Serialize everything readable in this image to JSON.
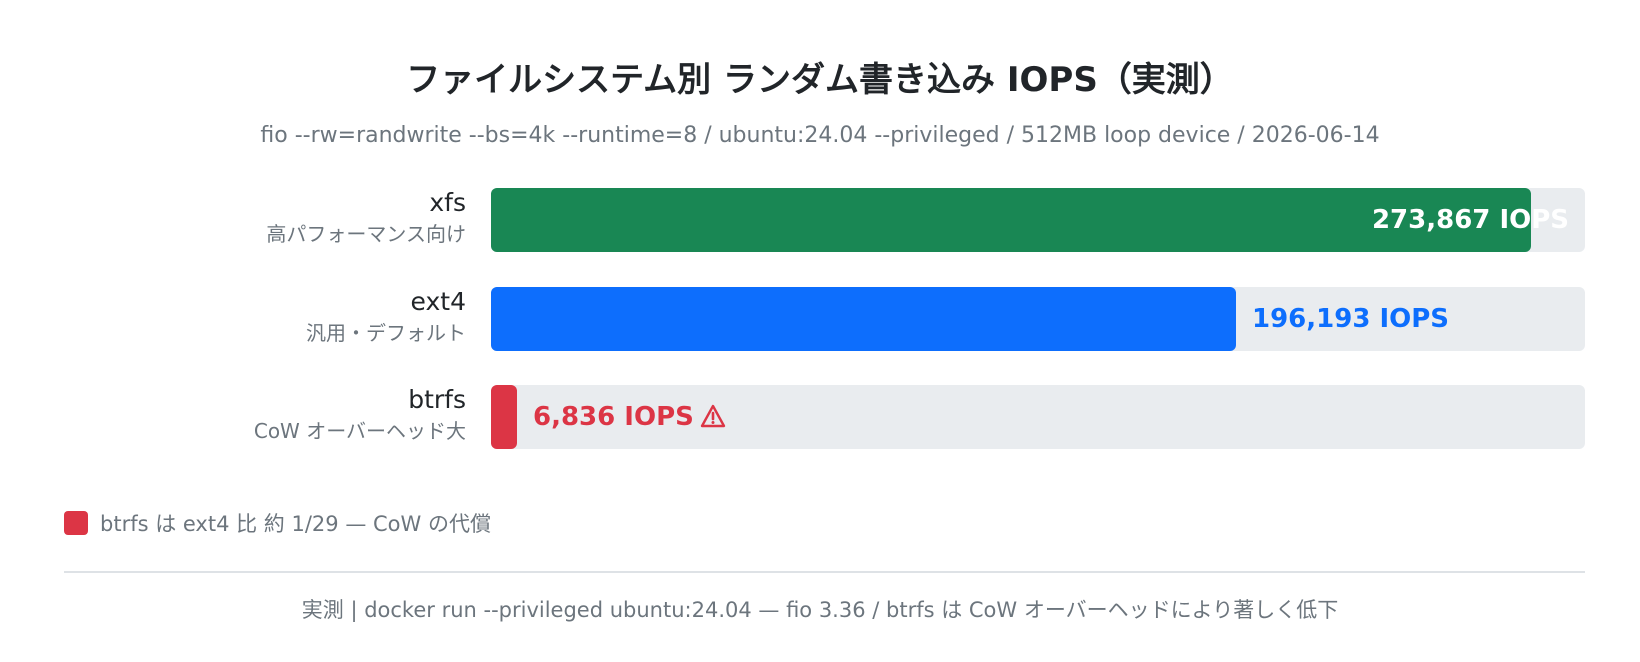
{
  "chart_data": {
    "type": "bar",
    "orientation": "horizontal",
    "title": "ファイルシステム別 ランダム書き込み IOPS（実測）",
    "subtitle": "fio --rw=randwrite --bs=4k --runtime=8 / ubuntu:24.04 --privileged / 512MB loop device / 2026-06-14",
    "xlim": [
      0,
      288000
    ],
    "grid": false,
    "bars": [
      {
        "category": "xfs",
        "note": "高パフォーマンス向け",
        "value": 273867,
        "label": "273,867 IOPS",
        "color": "#198754",
        "label_inside": true,
        "warning": false
      },
      {
        "category": "ext4",
        "note": "汎用・デフォルト",
        "value": 196193,
        "label": "196,193 IOPS",
        "color": "#0d6efd",
        "label_inside": false,
        "warning": false
      },
      {
        "category": "btrfs",
        "note": "CoW オーバーヘッド大",
        "value": 6836,
        "label": "6,836 IOPS",
        "color": "#dc3545",
        "label_inside": false,
        "warning": true
      }
    ],
    "legend": {
      "text": "btrfs は ext4 比 約 1/29 — CoW の代償",
      "color": "#dc3545",
      "placement": "bottom-left"
    },
    "footer": "実測 | docker run --privileged ubuntu:24.04 — fio 3.36 / btrfs は CoW オーバーヘッドにより著しく低下",
    "track_color": "#e9ecef"
  }
}
